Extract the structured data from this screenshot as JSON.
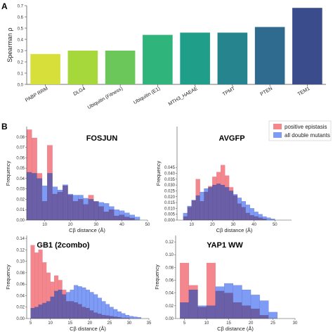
{
  "panels": {
    "a": "A",
    "b": "B"
  },
  "colors": {
    "positive": "#f4868e",
    "all": "#7f9cf5",
    "overlap": "#6b5fa8"
  },
  "legend": {
    "positive": "positive epistasis",
    "all": "all double mutants"
  },
  "chart_data": [
    {
      "type": "bar",
      "panel": "A",
      "categories": [
        "PABP RRM",
        "DLG4",
        "Ubiquitin (Fitness)",
        "Ubiquitin (E1)",
        "MTH3_HAEAE",
        "TPMT",
        "PTEN",
        "TEM1"
      ],
      "values": [
        0.27,
        0.3,
        0.3,
        0.44,
        0.46,
        0.46,
        0.51,
        0.68
      ],
      "colors": [
        "#d7e03a",
        "#a6d83b",
        "#6cc75a",
        "#2fb47c",
        "#1f9e89",
        "#25848e",
        "#2e6b8e",
        "#3b4c8c"
      ],
      "ylabel": "Spearman ρ",
      "ylim": [
        0,
        0.7
      ],
      "yticks": [
        0.0,
        0.1,
        0.2,
        0.3,
        0.4,
        0.5,
        0.6,
        0.7
      ],
      "ytick_labels": [
        "0.0",
        "0.1",
        "0.2",
        "0.3",
        "0.4",
        "0.5",
        "0.6",
        "0.7"
      ]
    },
    {
      "type": "histogram",
      "panel": "B",
      "title": "FOSJUN",
      "xlabel": "Cβ distance (Å)",
      "ylabel": "Frequency",
      "xlim": [
        3,
        50
      ],
      "ylim": [
        0,
        0.09
      ],
      "xticks": [
        10,
        20,
        30,
        40,
        50
      ],
      "xtick_labels": [
        "10",
        "20",
        "30",
        "40",
        "50"
      ],
      "yticks": [
        0.0,
        0.01,
        0.02,
        0.03,
        0.04,
        0.05,
        0.06,
        0.07,
        0.08
      ],
      "ytick_labels": [
        "0.00",
        "0.01",
        "0.02",
        "0.03",
        "0.04",
        "0.05",
        "0.06",
        "0.07",
        "0.08"
      ],
      "bin_edges": [
        3,
        5,
        7,
        9,
        11,
        13,
        15,
        17,
        19,
        21,
        23,
        25,
        27,
        29,
        31,
        33,
        35,
        37,
        39,
        41,
        43,
        45,
        47
      ],
      "series": [
        {
          "name": "positive epistasis",
          "values": [
            0.087,
            0.079,
            0.045,
            0.018,
            0.072,
            0.025,
            0.027,
            0.033,
            0.024,
            0.018,
            0.02,
            0.015,
            0.024,
            0.018,
            0.013,
            0.008,
            0.01,
            0.004,
            0.005,
            0.003,
            0.002,
            0.0
          ]
        },
        {
          "name": "all double mutants",
          "values": [
            0.046,
            0.045,
            0.04,
            0.033,
            0.045,
            0.032,
            0.029,
            0.034,
            0.025,
            0.024,
            0.024,
            0.021,
            0.02,
            0.018,
            0.017,
            0.016,
            0.013,
            0.01,
            0.009,
            0.007,
            0.005,
            0.003
          ]
        }
      ]
    },
    {
      "type": "histogram",
      "panel": "B",
      "title": "AVGFP",
      "xlabel": "Cβ distance (Å)",
      "ylabel": "Frequency",
      "xlim": [
        3,
        58
      ],
      "ylim": [
        0,
        0.08
      ],
      "xticks": [
        10,
        20,
        30,
        40,
        50
      ],
      "xtick_labels": [
        "10",
        "20",
        "30",
        "40",
        "50"
      ],
      "yticks": [
        0.0,
        0.005,
        0.01,
        0.015,
        0.02,
        0.025,
        0.03,
        0.035,
        0.04,
        0.045
      ],
      "ytick_labels": [
        "0.000",
        "0.005",
        "0.010",
        "0.015",
        "0.020",
        "0.025",
        "0.030",
        "0.035",
        "0.040",
        "0.045"
      ],
      "bin_edges": [
        6,
        8,
        10,
        12,
        14,
        16,
        18,
        20,
        22,
        24,
        26,
        28,
        30,
        32,
        34,
        36,
        38,
        40,
        42,
        44,
        46,
        48,
        50
      ],
      "series": [
        {
          "name": "positive epistasis",
          "values": [
            0.003,
            0.011,
            0.017,
            0.035,
            0.016,
            0.024,
            0.029,
            0.037,
            0.041,
            0.047,
            0.038,
            0.028,
            0.021,
            0.014,
            0.011,
            0.006,
            0.004,
            0.003,
            0.002,
            0.001,
            0.0,
            0.0
          ]
        },
        {
          "name": "all double mutants",
          "values": [
            0.006,
            0.012,
            0.017,
            0.021,
            0.024,
            0.027,
            0.028,
            0.03,
            0.031,
            0.03,
            0.028,
            0.025,
            0.022,
            0.019,
            0.016,
            0.013,
            0.01,
            0.007,
            0.005,
            0.003,
            0.002,
            0.001
          ]
        }
      ]
    },
    {
      "type": "histogram",
      "panel": "B",
      "title": "GB1 (2combo)",
      "xlabel": "Cβ distance (Å)",
      "ylabel": "Frequency",
      "xlim": [
        4,
        35
      ],
      "ylim": [
        0,
        0.145
      ],
      "xticks": [
        5,
        10,
        15,
        20,
        25,
        30,
        35
      ],
      "xtick_labels": [
        "5",
        "10",
        "15",
        "20",
        "25",
        "30",
        "35"
      ],
      "yticks": [
        0.0,
        0.02,
        0.04,
        0.06,
        0.08,
        0.1,
        0.12,
        0.14
      ],
      "ytick_labels": [
        "0.00",
        "0.02",
        "0.04",
        "0.06",
        "0.08",
        "0.10",
        "0.12",
        "0.14"
      ],
      "bin_edges": [
        5,
        6,
        7,
        8,
        9,
        10,
        11,
        12,
        13,
        14,
        15,
        16,
        17,
        18,
        19,
        20,
        21,
        22,
        23,
        24,
        25,
        26,
        27,
        28,
        29,
        30,
        31,
        32,
        33
      ],
      "series": [
        {
          "name": "positive epistasis",
          "values": [
            0.128,
            0.115,
            0.12,
            0.098,
            0.08,
            0.064,
            0.075,
            0.067,
            0.05,
            0.03,
            0.03,
            0.028,
            0.025,
            0.02,
            0.018,
            0.014,
            0.01,
            0.008,
            0.006,
            0.005,
            0.004,
            0.003,
            0.002,
            0.001,
            0.001,
            0.0,
            0.0,
            0.0
          ]
        },
        {
          "name": "all double mutants",
          "values": [
            0.018,
            0.02,
            0.024,
            0.027,
            0.03,
            0.038,
            0.048,
            0.05,
            0.042,
            0.046,
            0.05,
            0.058,
            0.056,
            0.054,
            0.05,
            0.046,
            0.042,
            0.036,
            0.03,
            0.025,
            0.02,
            0.016,
            0.012,
            0.009,
            0.006,
            0.004,
            0.003,
            0.002
          ]
        }
      ]
    },
    {
      "type": "histogram",
      "panel": "B",
      "title": "YAP1 WW",
      "xlabel": "Cβ distance (Å)",
      "ylabel": "Frequency",
      "xlim": [
        3,
        30
      ],
      "ylim": [
        0,
        0.13
      ],
      "xticks": [
        5,
        10,
        15,
        20,
        25,
        30
      ],
      "xtick_labels": [
        "5",
        "10",
        "15",
        "20",
        "25",
        "30"
      ],
      "yticks": [
        0.0,
        0.02,
        0.04,
        0.06,
        0.08,
        0.1,
        0.12
      ],
      "ytick_labels": [
        "0.00",
        "0.02",
        "0.04",
        "0.06",
        "0.08",
        "0.10",
        "0.12"
      ],
      "bin_edges": [
        4,
        6,
        8,
        10,
        12,
        14,
        16,
        18,
        20,
        22,
        24,
        26
      ],
      "series": [
        {
          "name": "positive epistasis",
          "values": [
            0.087,
            0.052,
            0.018,
            0.087,
            0.043,
            0.04,
            0.025,
            0.02,
            0.015,
            0.005,
            0.0
          ]
        },
        {
          "name": "all double mutants",
          "values": [
            0.025,
            0.045,
            0.02,
            0.02,
            0.05,
            0.055,
            0.052,
            0.045,
            0.037,
            0.028,
            0.01
          ]
        }
      ]
    }
  ]
}
